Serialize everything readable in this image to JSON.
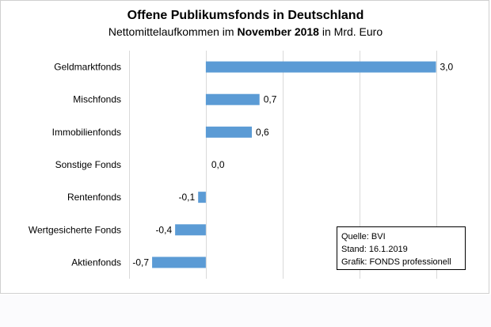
{
  "chart_data": {
    "type": "bar",
    "orientation": "horizontal",
    "title": "Offene Publikumsfonds  in Deutschland",
    "subtitle_prefix": "Nettomittelaufkommen im ",
    "subtitle_bold": "November 2018",
    "subtitle_suffix": " in Mrd. Euro",
    "categories": [
      "Geldmarktfonds",
      "Mischfonds",
      "Immobilienfonds",
      "Sonstige Fonds",
      "Rentenfonds",
      "Wertgesicherte Fonds",
      "Aktienfonds"
    ],
    "values": [
      3.0,
      0.7,
      0.6,
      0.0,
      -0.1,
      -0.4,
      -0.7
    ],
    "value_labels": [
      "3,0",
      "0,7",
      "0,6",
      "0,0",
      "-0,1",
      "-0,4",
      "-0,7"
    ],
    "xlim": [
      -1.0,
      3.5
    ],
    "gridline_values": [
      -1.0,
      0.0,
      1.0,
      2.0,
      3.0
    ],
    "grid": true,
    "bar_color": "#5b9bd5",
    "grid_color": "#d9d9d9"
  },
  "source_box": {
    "line1": "Quelle: BVI",
    "line2": "Stand: 16.1.2019",
    "line3": "Grafik: FONDS professionell"
  }
}
